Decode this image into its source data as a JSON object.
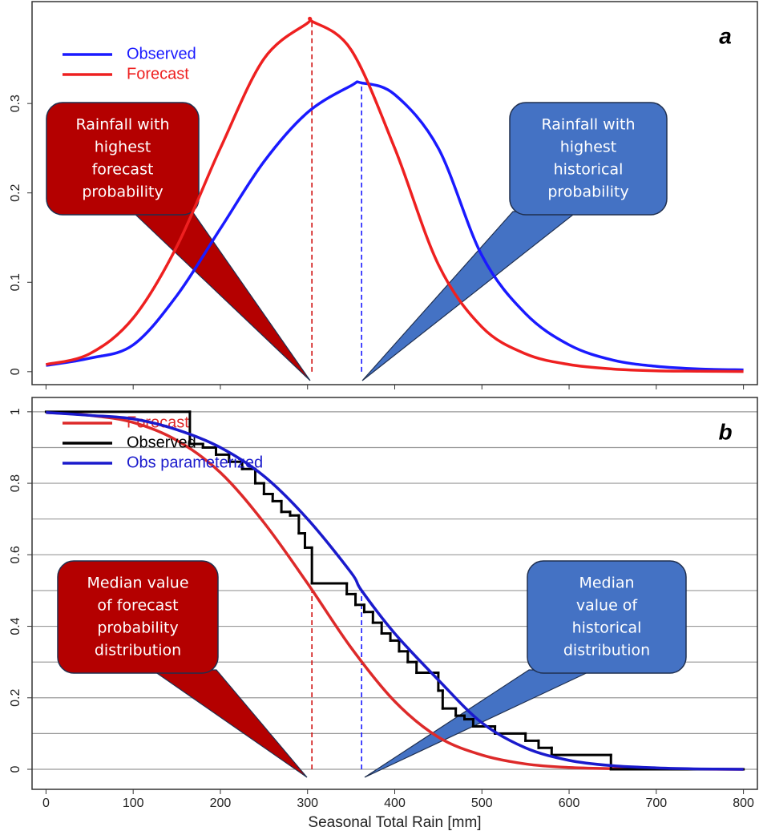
{
  "chart_data": [
    {
      "type": "line",
      "panel_label": "a",
      "xlim": [
        -16,
        816
      ],
      "ylim": [
        -0.0145,
        0.414
      ],
      "xticks": [
        0,
        100,
        200,
        300,
        400,
        500,
        600,
        700,
        800
      ],
      "yticks": [
        0,
        0.1,
        0.2,
        0.3
      ],
      "grid": false,
      "series": [
        {
          "name": "Observed",
          "color": "#1a1aff",
          "x": [
            0,
            50,
            100,
            150,
            200,
            250,
            300,
            350,
            362,
            400,
            450,
            500,
            550,
            600,
            650,
            700,
            750,
            800
          ],
          "values": [
            0.007,
            0.015,
            0.03,
            0.085,
            0.16,
            0.235,
            0.29,
            0.32,
            0.323,
            0.31,
            0.25,
            0.13,
            0.065,
            0.03,
            0.013,
            0.006,
            0.003,
            0.002
          ]
        },
        {
          "name": "Forecast",
          "color": "#ee2020",
          "x": [
            0,
            50,
            100,
            150,
            200,
            250,
            300,
            305,
            350,
            400,
            450,
            500,
            550,
            600,
            650,
            700,
            750,
            800
          ],
          "values": [
            0.008,
            0.02,
            0.06,
            0.14,
            0.25,
            0.35,
            0.39,
            0.392,
            0.36,
            0.25,
            0.12,
            0.05,
            0.02,
            0.008,
            0.003,
            0.001,
            0.0005,
            0.0002
          ]
        }
      ],
      "reference_lines": [
        {
          "x": 305,
          "y": 0.392,
          "color": "#d01010"
        },
        {
          "x": 362,
          "y": 0.323,
          "color": "#1a1aff"
        }
      ],
      "annotations": [
        {
          "lines": [
            "Rainfall with",
            "highest",
            "forecast",
            "probability"
          ],
          "color": "#b40000"
        },
        {
          "lines": [
            "Rainfall with",
            "highest",
            "historical",
            "probability"
          ],
          "color": "#4472c4"
        }
      ]
    },
    {
      "type": "line",
      "panel_label": "b",
      "x_label": "Seasonal Total Rain [mm]",
      "xlim": [
        -16,
        816
      ],
      "ylim": [
        -0.056,
        1.04
      ],
      "xticks": [
        0,
        100,
        200,
        300,
        400,
        500,
        600,
        700,
        800
      ],
      "yticks": [
        0,
        0.2,
        0.4,
        0.6,
        0.8,
        1
      ],
      "minor_yticks": [
        0.1,
        0.3,
        0.5,
        0.7,
        0.9
      ],
      "grid": true,
      "series": [
        {
          "name": "Forecast",
          "color": "#dd2a2a",
          "x": [
            0,
            50,
            100,
            150,
            200,
            250,
            300,
            350,
            400,
            450,
            500,
            550,
            600,
            650,
            700,
            800
          ],
          "values": [
            0.998,
            0.99,
            0.97,
            0.92,
            0.83,
            0.69,
            0.52,
            0.34,
            0.19,
            0.09,
            0.04,
            0.015,
            0.005,
            0.002,
            0.001,
            0
          ]
        },
        {
          "name": "Observed",
          "color": "#000000",
          "step": true,
          "x": [
            0,
            165,
            180,
            195,
            210,
            225,
            240,
            250,
            260,
            270,
            280,
            290,
            297,
            305,
            345,
            355,
            365,
            375,
            385,
            395,
            405,
            415,
            425,
            450,
            455,
            470,
            480,
            490,
            515,
            550,
            565,
            580,
            648,
            800
          ],
          "values": [
            1,
            0.91,
            0.9,
            0.88,
            0.86,
            0.84,
            0.8,
            0.77,
            0.75,
            0.72,
            0.71,
            0.66,
            0.62,
            0.52,
            0.49,
            0.46,
            0.44,
            0.41,
            0.38,
            0.36,
            0.33,
            0.3,
            0.27,
            0.22,
            0.17,
            0.15,
            0.14,
            0.12,
            0.1,
            0.08,
            0.06,
            0.04,
            0,
            0
          ]
        },
        {
          "name": "Obs parameterized",
          "color": "#1a1acc",
          "x": [
            0,
            50,
            100,
            150,
            200,
            250,
            300,
            350,
            362,
            400,
            450,
            500,
            550,
            600,
            650,
            700,
            750,
            800
          ],
          "values": [
            0.998,
            0.99,
            0.98,
            0.95,
            0.9,
            0.82,
            0.7,
            0.55,
            0.5,
            0.38,
            0.25,
            0.13,
            0.06,
            0.025,
            0.01,
            0.004,
            0.001,
            0
          ]
        }
      ],
      "reference_lines": [
        {
          "x": 305,
          "y": 0.5,
          "color": "#d01010"
        },
        {
          "x": 362,
          "y": 0.5,
          "color": "#1a1aff"
        }
      ],
      "annotations": [
        {
          "lines": [
            "Median value",
            "of forecast",
            "probability",
            "distribution"
          ],
          "color": "#b40000"
        },
        {
          "lines": [
            "Median",
            "value of",
            "historical",
            "distribution"
          ],
          "color": "#4472c4"
        }
      ]
    }
  ]
}
